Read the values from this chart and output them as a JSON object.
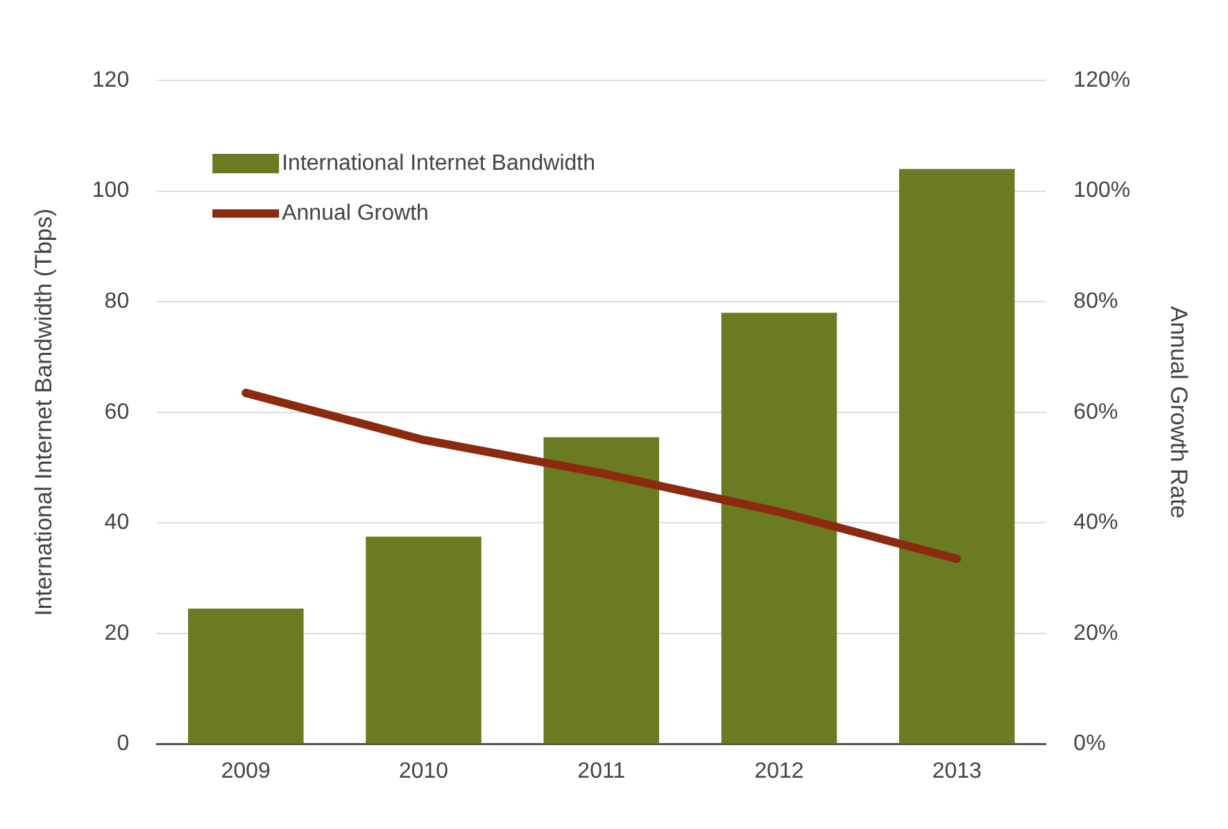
{
  "chart_data": {
    "type": "bar",
    "categories": [
      "2009",
      "2010",
      "2011",
      "2012",
      "2013"
    ],
    "series": [
      {
        "name": "International Internet Bandwidth",
        "color": "#6b7b22",
        "values": [
          24.5,
          37.5,
          55.5,
          78,
          104
        ]
      },
      {
        "name": "Annual Growth",
        "type": "line",
        "axis": "y2",
        "color": "#8b2a0e",
        "values": [
          63.5,
          55,
          49,
          42,
          33.5
        ]
      }
    ],
    "ylabel": "International Internet Bandwidth (Tbps)",
    "y2label": "Annual Growth Rate",
    "ylim": [
      0,
      120
    ],
    "yticks": [
      0,
      20,
      40,
      60,
      80,
      100,
      120
    ],
    "y2lim": [
      0,
      120
    ],
    "y2ticks": [
      {
        "value": 0,
        "label": "0%"
      },
      {
        "value": 20,
        "label": "20%"
      },
      {
        "value": 40,
        "label": "40%"
      },
      {
        "value": 60,
        "label": "60%"
      },
      {
        "value": 80,
        "label": "80%"
      },
      {
        "value": 100,
        "label": "100%"
      },
      {
        "value": 120,
        "label": "120%"
      }
    ],
    "grid": "y",
    "legend": "top left",
    "marker": "none"
  }
}
